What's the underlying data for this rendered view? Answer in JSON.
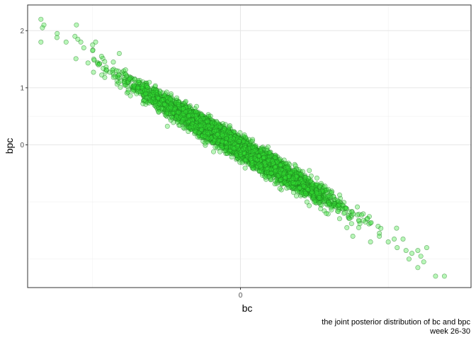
{
  "chart_data": {
    "type": "scatter",
    "xlabel": "bc",
    "ylabel": "bpc",
    "xlim": [
      -0.72,
      0.78
    ],
    "ylim": [
      -2.5,
      2.45
    ],
    "x_ticks": [
      0
    ],
    "y_ticks": [
      0,
      1,
      2
    ],
    "x_minor_ticks": [
      -0.5,
      0.5
    ],
    "y_minor_ticks": [
      -2,
      -1,
      0.5,
      1.5
    ],
    "grid": true,
    "point_color": "#00c800",
    "point_fill_color": "#33e633",
    "point_stroke_color": "#1e781e",
    "approx_point_count": 6000,
    "trend": {
      "slope": -3.04,
      "intercept": -0.05,
      "residual_sd": 0.09
    },
    "x_range_of_points": [
      -0.68,
      0.69
    ],
    "points": [
      [
        -0.675,
        2.2
      ],
      [
        -0.665,
        2.1
      ],
      [
        -0.67,
        2.05
      ],
      [
        -0.675,
        1.8
      ],
      [
        -0.62,
        1.95
      ],
      [
        -0.59,
        1.8
      ],
      [
        -0.555,
        2.1
      ],
      [
        -0.55,
        1.85
      ],
      [
        -0.56,
        1.9
      ],
      [
        -0.54,
        1.8
      ],
      [
        -0.53,
        1.7
      ],
      [
        -0.5,
        1.75
      ],
      [
        -0.49,
        1.8
      ],
      [
        -0.5,
        1.65
      ],
      [
        -0.47,
        1.55
      ],
      [
        -0.48,
        1.4
      ],
      [
        -0.43,
        1.45
      ],
      [
        -0.42,
        1.3
      ],
      [
        -0.41,
        1.6
      ],
      [
        -0.36,
        1.05
      ],
      [
        -0.32,
        0.9
      ],
      [
        -0.33,
        0.72
      ],
      [
        -0.25,
        0.55
      ],
      [
        -0.2,
        0.4
      ],
      [
        -0.12,
        0.15
      ],
      [
        -0.05,
        -0.1
      ],
      [
        0.05,
        -0.25
      ],
      [
        0.12,
        -0.45
      ],
      [
        0.22,
        -0.85
      ],
      [
        0.3,
        -1.05
      ],
      [
        0.35,
        -1.2
      ],
      [
        0.4,
        -1.45
      ],
      [
        0.47,
        -1.55
      ],
      [
        0.52,
        -1.65
      ],
      [
        0.55,
        -1.65
      ],
      [
        0.5,
        -1.7
      ],
      [
        0.47,
        -1.6
      ],
      [
        0.44,
        -1.7
      ],
      [
        0.53,
        -1.8
      ],
      [
        0.56,
        -1.85
      ],
      [
        0.58,
        -1.9
      ],
      [
        0.6,
        -1.85
      ],
      [
        0.61,
        -1.95
      ],
      [
        0.63,
        -1.8
      ],
      [
        0.62,
        -2.05
      ],
      [
        0.6,
        -2.15
      ],
      [
        0.57,
        -2.0
      ],
      [
        0.66,
        -2.3
      ],
      [
        0.69,
        -2.3
      ],
      [
        0.36,
        -1.45
      ],
      [
        0.38,
        -1.6
      ],
      [
        0.25,
        -1.0
      ],
      [
        0.29,
        -1.2
      ],
      [
        0.4,
        -1.32
      ]
    ]
  },
  "caption": {
    "line1": "the joint posterior distribution of bc and bpc",
    "line2": "week 26-30"
  }
}
